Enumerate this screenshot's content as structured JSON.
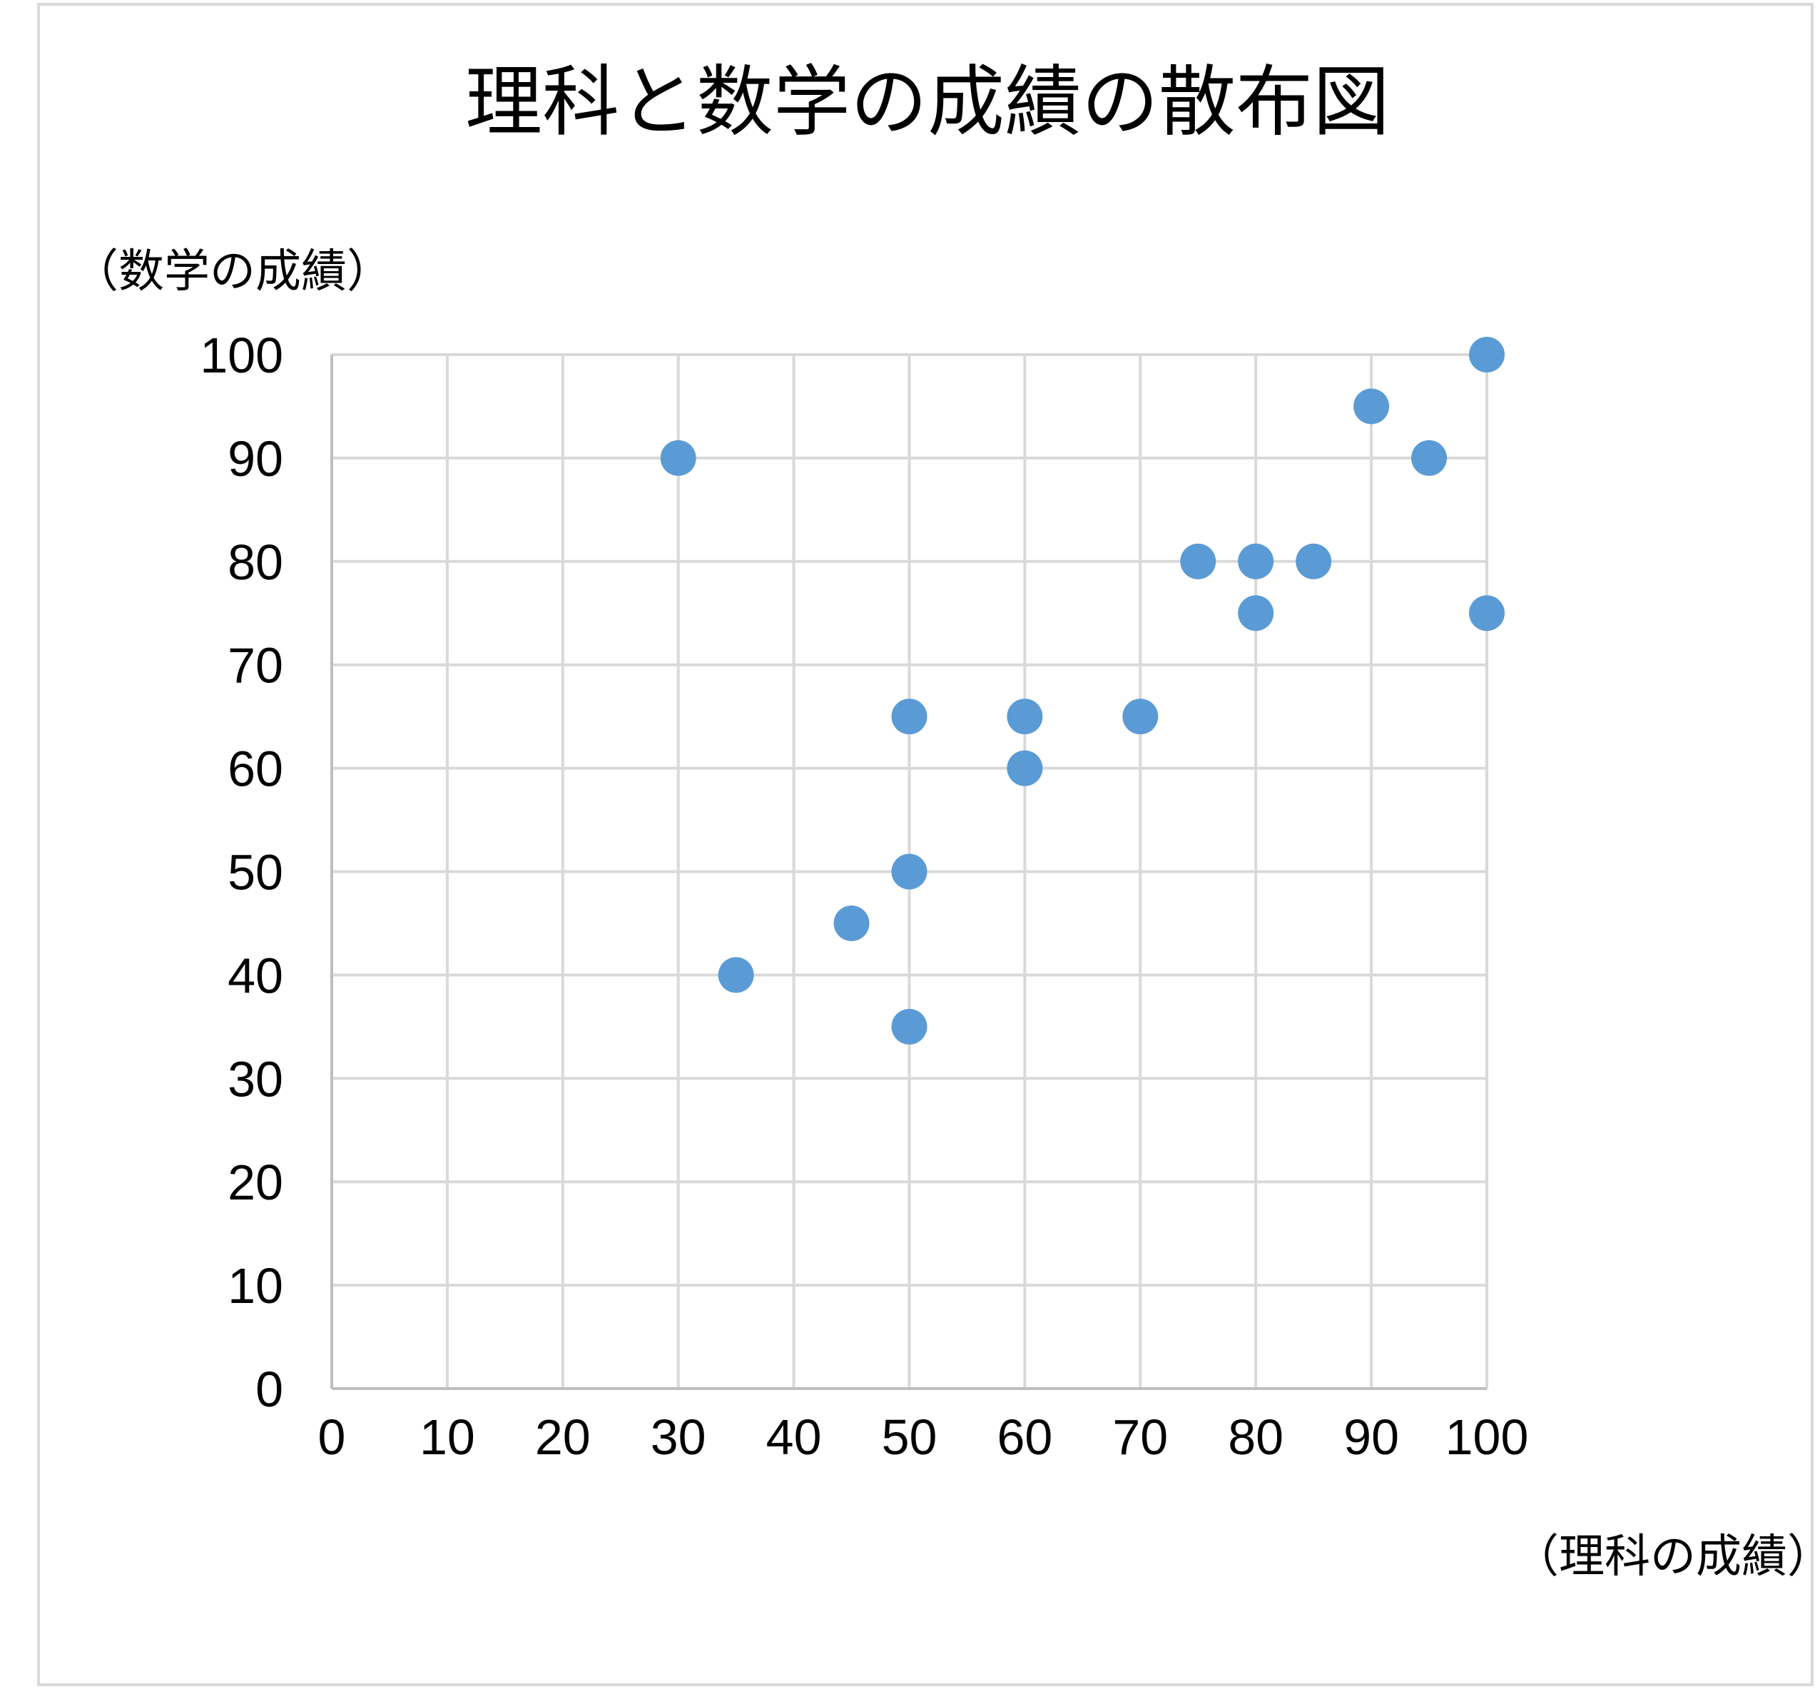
{
  "chart_data": {
    "type": "scatter",
    "title": "理科と数学の成績の散布図",
    "xlabel": "（理科の成績）",
    "ylabel": "（数学の成績）",
    "xlim": [
      0,
      100
    ],
    "ylim": [
      0,
      100
    ],
    "x_ticks": [
      "0",
      "10",
      "20",
      "30",
      "40",
      "50",
      "60",
      "70",
      "80",
      "90",
      "100"
    ],
    "y_ticks": [
      "0",
      "10",
      "20",
      "30",
      "40",
      "50",
      "60",
      "70",
      "80",
      "90",
      "100"
    ],
    "grid": true,
    "legend": "none",
    "marker_color": "#5b9bd5",
    "grid_color": "#d9d9d9",
    "points": [
      {
        "x": 30,
        "y": 90
      },
      {
        "x": 35,
        "y": 40
      },
      {
        "x": 45,
        "y": 45
      },
      {
        "x": 50,
        "y": 65
      },
      {
        "x": 50,
        "y": 50
      },
      {
        "x": 50,
        "y": 35
      },
      {
        "x": 60,
        "y": 65
      },
      {
        "x": 60,
        "y": 60
      },
      {
        "x": 70,
        "y": 65
      },
      {
        "x": 75,
        "y": 80
      },
      {
        "x": 80,
        "y": 80
      },
      {
        "x": 80,
        "y": 75
      },
      {
        "x": 85,
        "y": 80
      },
      {
        "x": 90,
        "y": 95
      },
      {
        "x": 95,
        "y": 90
      },
      {
        "x": 100,
        "y": 100
      },
      {
        "x": 100,
        "y": 75
      }
    ]
  }
}
